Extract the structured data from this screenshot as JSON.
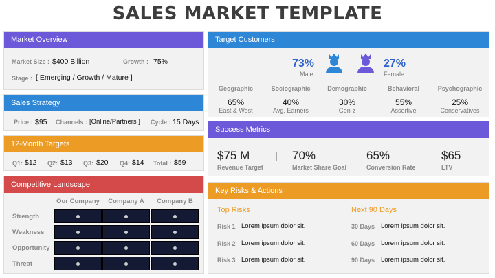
{
  "title": "SALES MARKET TEMPLATE",
  "market_overview": {
    "header": "Market Overview",
    "size_label": "Market Size :",
    "size_value": "$400 Billion",
    "growth_label": "Growth :",
    "growth_value": "75%",
    "stage_label": "Stage :",
    "stage_value": "[ Emerging / Growth / Mature ]"
  },
  "sales_strategy": {
    "header": "Sales Strategy",
    "price_label": "Price :",
    "price_value": "$95",
    "channels_label": "Channels :",
    "channels_value": "[Online/Partners ]",
    "cycle_label": "Cycle :",
    "cycle_value": "15 Days"
  },
  "targets": {
    "header": "12-Month Targets",
    "items": [
      {
        "label": "Q1:",
        "value": "$12"
      },
      {
        "label": "Q2:",
        "value": "$13"
      },
      {
        "label": "Q3:",
        "value": "$20"
      },
      {
        "label": "Q4:",
        "value": "$14"
      },
      {
        "label": "Total :",
        "value": "$59"
      }
    ]
  },
  "competitive": {
    "header": "Competitive Landscape",
    "columns": [
      "Our Company",
      "Company A",
      "Company B"
    ],
    "rows": [
      "Strength",
      "Weakness",
      "Opportunity",
      "Threat"
    ]
  },
  "target_customers": {
    "header": "Target Customers",
    "male_pct": "73%",
    "male_label": "Male",
    "female_pct": "27%",
    "female_label": "Female",
    "segments": [
      {
        "label": "Geographic",
        "value": "65%",
        "desc": "East & West"
      },
      {
        "label": "Sociographic",
        "value": "40%",
        "desc": "Avg. Earners"
      },
      {
        "label": "Demographic",
        "value": "30%",
        "desc": "Gen-z"
      },
      {
        "label": "Behavioral",
        "value": "55%",
        "desc": "Assertive"
      },
      {
        "label": "Psychographic",
        "value": "25%",
        "desc": "Conservatives"
      }
    ]
  },
  "success_metrics": {
    "header": "Success Metrics",
    "items": [
      {
        "value": "$75 M",
        "label": "Revenue Target"
      },
      {
        "value": "70%",
        "label": "Market Share Goal"
      },
      {
        "value": "65%",
        "label": "Conversion Rate"
      },
      {
        "value": "$65",
        "label": "LTV"
      }
    ]
  },
  "risks": {
    "header": "Key Risks & Actions",
    "top_risks_label": "Top Risks",
    "next90_label": "Next 90 Days",
    "risk_items": [
      {
        "label": "Risk 1",
        "text": "Lorem ipsum dolor sit."
      },
      {
        "label": "Risk 2",
        "text": "Lorem ipsum dolor sit."
      },
      {
        "label": "Risk 3",
        "text": "Lorem ipsum dolor sit."
      }
    ],
    "action_items": [
      {
        "label": "30 Days",
        "text": "Lorem ipsum dolor sit."
      },
      {
        "label": "60 Days",
        "text": "Lorem ipsum dolor sit."
      },
      {
        "label": "90 Days",
        "text": "Lorem ipsum dolor sit."
      }
    ]
  },
  "colors": {
    "purple": "#6b59d9",
    "blue": "#2e86d6",
    "orange": "#ec9c24",
    "red": "#d44a4a"
  }
}
